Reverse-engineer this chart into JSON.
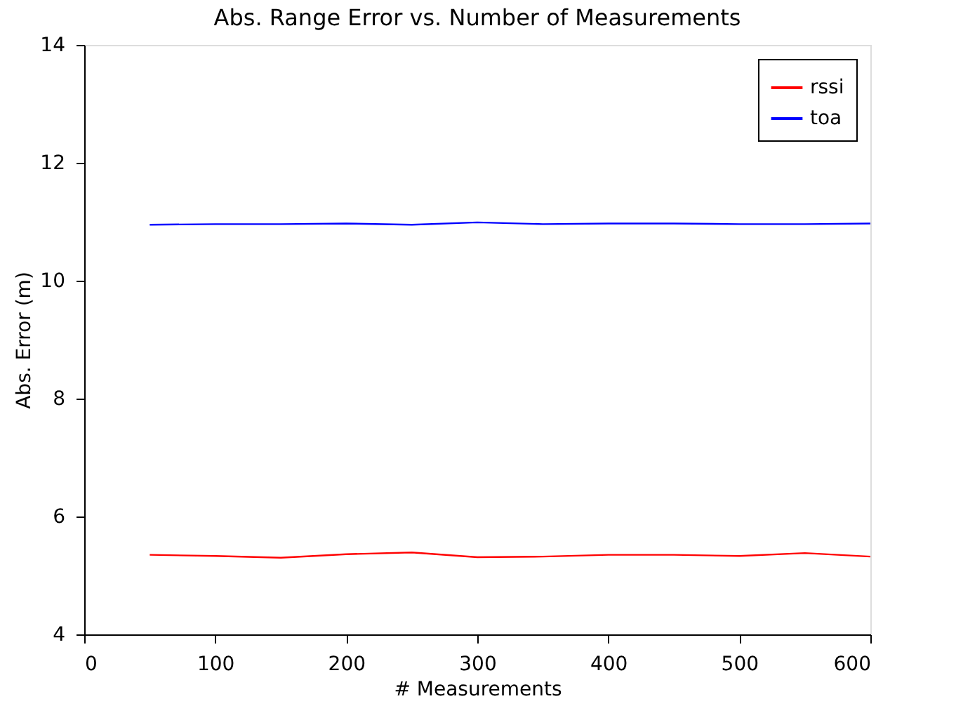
{
  "chart_data": {
    "type": "line",
    "title": "Abs. Range Error vs. Number of Measurements",
    "xlabel": "# Measurements",
    "ylabel": "Abs. Error (m)",
    "x": [
      50,
      100,
      150,
      200,
      250,
      300,
      350,
      400,
      450,
      500,
      550,
      600
    ],
    "series": [
      {
        "name": "rssi",
        "color": "#ff0000",
        "values": [
          5.35,
          5.33,
          5.3,
          5.36,
          5.39,
          5.31,
          5.32,
          5.35,
          5.35,
          5.33,
          5.38,
          5.32
        ]
      },
      {
        "name": "toa",
        "color": "#0000ff",
        "values": [
          10.95,
          10.96,
          10.96,
          10.97,
          10.95,
          10.99,
          10.96,
          10.97,
          10.97,
          10.96,
          10.96,
          10.97
        ]
      }
    ],
    "xlim": [
      0,
      600
    ],
    "xticks": [
      0,
      100,
      200,
      300,
      400,
      500,
      600
    ],
    "ylim": [
      4,
      14
    ],
    "yticks": [
      4,
      6,
      8,
      10,
      12,
      14
    ],
    "grid": false,
    "legend": "top right",
    "marker": "none",
    "line_style": "solid"
  }
}
